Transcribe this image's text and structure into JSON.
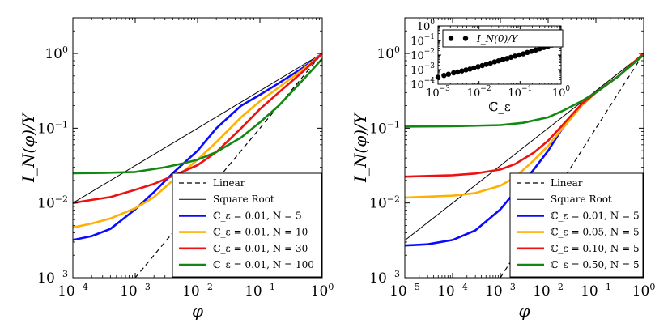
{
  "chart_data": [
    {
      "type": "line",
      "xscale": "log",
      "yscale": "log",
      "xlim": [
        0.0001,
        1
      ],
      "ylim": [
        0.001,
        3
      ],
      "xlabel": "φ",
      "ylabel": "I_N(φ)/Y",
      "x_ticks": [
        {
          "base": "10",
          "exp": "−4"
        },
        {
          "base": "10",
          "exp": "−3"
        },
        {
          "base": "10",
          "exp": "−2"
        },
        {
          "base": "10",
          "exp": "−1"
        },
        {
          "base": "10",
          "exp": "0"
        }
      ],
      "y_ticks": [
        {
          "base": "10",
          "exp": "−3"
        },
        {
          "base": "10",
          "exp": "−2"
        },
        {
          "base": "10",
          "exp": "−1"
        },
        {
          "base": "10",
          "exp": "0"
        }
      ],
      "legend_position": "bottom-right",
      "series": [
        {
          "name": "Linear",
          "color": "#000000",
          "style": "dashed",
          "x": [
            0.001,
            0.01,
            0.1,
            1
          ],
          "y": [
            0.001,
            0.01,
            0.1,
            1
          ]
        },
        {
          "name": "Square Root",
          "color": "#000000",
          "style": "thin",
          "x": [
            0.0001,
            0.001,
            0.01,
            0.1,
            1
          ],
          "y": [
            0.01,
            0.0316,
            0.1,
            0.316,
            1
          ]
        },
        {
          "name": "ℂ_ε = 0.01, N = 5",
          "color": "#0a0aff",
          "style": "solid",
          "x": [
            0.0001,
            0.0002,
            0.0004,
            0.001,
            0.002,
            0.004,
            0.01,
            0.02,
            0.05,
            0.1,
            0.2,
            0.5,
            1
          ],
          "y": [
            0.0032,
            0.0036,
            0.0045,
            0.0082,
            0.014,
            0.025,
            0.05,
            0.1,
            0.2,
            0.28,
            0.4,
            0.65,
            1
          ]
        },
        {
          "name": "ℂ_ε = 0.01, N = 10",
          "color": "#ffb000",
          "style": "solid",
          "x": [
            0.0001,
            0.0002,
            0.0004,
            0.001,
            0.002,
            0.004,
            0.01,
            0.02,
            0.05,
            0.1,
            0.2,
            0.5,
            1
          ],
          "y": [
            0.0047,
            0.0053,
            0.0062,
            0.0085,
            0.012,
            0.02,
            0.038,
            0.065,
            0.14,
            0.23,
            0.35,
            0.62,
            1
          ]
        },
        {
          "name": "ℂ_ε = 0.01, N = 30",
          "color": "#ee1111",
          "style": "solid",
          "x": [
            0.0001,
            0.0002,
            0.0004,
            0.001,
            0.002,
            0.004,
            0.01,
            0.02,
            0.05,
            0.1,
            0.2,
            0.5,
            1
          ],
          "y": [
            0.01,
            0.011,
            0.012,
            0.015,
            0.018,
            0.023,
            0.032,
            0.048,
            0.1,
            0.18,
            0.3,
            0.58,
            1
          ]
        },
        {
          "name": "ℂ_ε = 0.01, N = 100",
          "color": "#118811",
          "style": "solid",
          "x": [
            0.0001,
            0.0003,
            0.001,
            0.003,
            0.006,
            0.01,
            0.02,
            0.05,
            0.1,
            0.2,
            0.5,
            1
          ],
          "y": [
            0.025,
            0.0252,
            0.026,
            0.03,
            0.034,
            0.038,
            0.048,
            0.075,
            0.12,
            0.2,
            0.45,
            0.85
          ]
        }
      ]
    },
    {
      "type": "line",
      "xscale": "log",
      "yscale": "log",
      "xlim": [
        1e-05,
        1
      ],
      "ylim": [
        0.001,
        3
      ],
      "xlabel": "φ",
      "ylabel": "I_N(φ)/Y",
      "x_ticks": [
        {
          "base": "10",
          "exp": "−5"
        },
        {
          "base": "10",
          "exp": "−4"
        },
        {
          "base": "10",
          "exp": "−3"
        },
        {
          "base": "10",
          "exp": "−2"
        },
        {
          "base": "10",
          "exp": "−1"
        },
        {
          "base": "10",
          "exp": "0"
        }
      ],
      "y_ticks": [
        {
          "base": "10",
          "exp": "−3"
        },
        {
          "base": "10",
          "exp": "−2"
        },
        {
          "base": "10",
          "exp": "−1"
        },
        {
          "base": "10",
          "exp": "0"
        }
      ],
      "legend_position": "bottom-right",
      "series": [
        {
          "name": "Linear",
          "color": "#000000",
          "style": "dashed",
          "x": [
            0.001,
            0.01,
            0.1,
            1
          ],
          "y": [
            0.001,
            0.01,
            0.1,
            1
          ]
        },
        {
          "name": "Square Root",
          "color": "#000000",
          "style": "thin",
          "x": [
            1e-05,
            0.0001,
            0.001,
            0.01,
            0.1,
            1
          ],
          "y": [
            0.00316,
            0.01,
            0.0316,
            0.1,
            0.316,
            1
          ]
        },
        {
          "name": "ℂ_ε = 0.01, N = 5",
          "color": "#0a0aff",
          "style": "solid",
          "x": [
            1e-05,
            3e-05,
            0.0001,
            0.0003,
            0.001,
            0.002,
            0.005,
            0.01,
            0.02,
            0.05,
            0.1,
            0.3,
            1
          ],
          "y": [
            0.0027,
            0.0028,
            0.0032,
            0.0043,
            0.0082,
            0.014,
            0.028,
            0.05,
            0.1,
            0.2,
            0.3,
            0.5,
            1
          ]
        },
        {
          "name": "ℂ_ε = 0.05, N = 5",
          "color": "#ffb000",
          "style": "solid",
          "x": [
            1e-05,
            0.0001,
            0.0003,
            0.001,
            0.002,
            0.005,
            0.01,
            0.02,
            0.05,
            0.1,
            0.3,
            1
          ],
          "y": [
            0.0118,
            0.0125,
            0.0136,
            0.017,
            0.022,
            0.037,
            0.058,
            0.1,
            0.2,
            0.3,
            0.5,
            1
          ]
        },
        {
          "name": "ℂ_ε = 0.10, N = 5",
          "color": "#ee1111",
          "style": "solid",
          "x": [
            1e-05,
            0.0001,
            0.0003,
            0.001,
            0.002,
            0.005,
            0.01,
            0.02,
            0.05,
            0.1,
            0.3,
            1
          ],
          "y": [
            0.0225,
            0.0235,
            0.0248,
            0.028,
            0.033,
            0.047,
            0.068,
            0.11,
            0.21,
            0.3,
            0.5,
            1
          ]
        },
        {
          "name": "ℂ_ε = 0.50, N = 5",
          "color": "#118811",
          "style": "solid",
          "x": [
            1e-05,
            0.0001,
            0.001,
            0.003,
            0.01,
            0.02,
            0.05,
            0.1,
            0.3,
            1
          ],
          "y": [
            0.105,
            0.106,
            0.11,
            0.118,
            0.14,
            0.17,
            0.23,
            0.3,
            0.5,
            0.95
          ]
        }
      ]
    },
    {
      "type": "scatter",
      "role": "inset",
      "xscale": "log",
      "yscale": "log",
      "xlim": [
        0.001,
        1
      ],
      "ylim": [
        0.0001,
        1
      ],
      "xlabel": "ℂ_ε",
      "legend": "I_N(0)/Y",
      "x_ticks": [
        {
          "base": "10",
          "exp": "−3"
        },
        {
          "base": "10",
          "exp": "−2"
        },
        {
          "base": "10",
          "exp": "−1"
        },
        {
          "base": "10",
          "exp": "0"
        }
      ],
      "y_ticks": [
        {
          "base": "10",
          "exp": "−4"
        },
        {
          "base": "10",
          "exp": "−3"
        },
        {
          "base": "10",
          "exp": "−2"
        },
        {
          "base": "10",
          "exp": "−1"
        },
        {
          "base": "10",
          "exp": "0"
        }
      ],
      "x": [
        0.001,
        0.0014,
        0.0018,
        0.0024,
        0.003,
        0.0038,
        0.0048,
        0.006,
        0.0075,
        0.0095,
        0.012,
        0.015,
        0.019,
        0.024,
        0.03,
        0.038,
        0.048,
        0.06,
        0.075,
        0.095,
        0.12,
        0.15,
        0.19,
        0.24,
        0.3,
        0.38,
        0.48,
        0.6,
        0.75,
        0.95
      ],
      "y": [
        0.0003,
        0.0004,
        0.00048,
        0.0006,
        0.00068,
        0.0008,
        0.00095,
        0.0011,
        0.0013,
        0.0016,
        0.0019,
        0.0023,
        0.0028,
        0.0034,
        0.004,
        0.0048,
        0.0058,
        0.007,
        0.0085,
        0.01,
        0.012,
        0.015,
        0.018,
        0.022,
        0.027,
        0.033,
        0.04,
        0.048,
        0.058,
        0.07
      ]
    }
  ]
}
